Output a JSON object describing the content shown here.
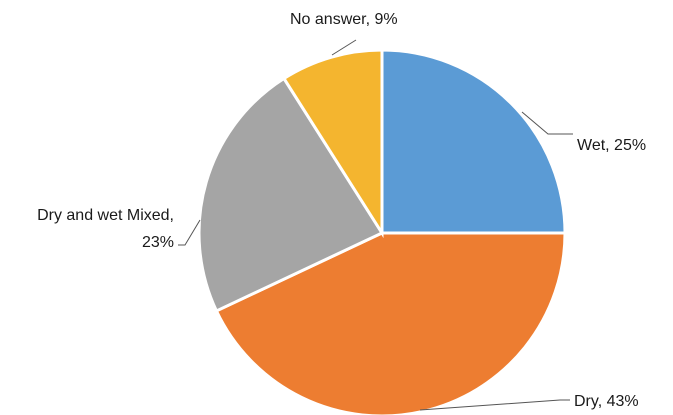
{
  "chart_data": {
    "type": "pie",
    "start_angle_deg": 0,
    "direction": "clockwise",
    "slices": [
      {
        "label": "Wet",
        "value": 25,
        "label_text": "Wet, 25%",
        "color": "#5b9bd5"
      },
      {
        "label": "Dry",
        "value": 43,
        "label_text": "Dry, 43%",
        "color": "#ed7d31"
      },
      {
        "label": "Dry and wet Mixed",
        "value": 23,
        "label_lines": [
          "Dry and wet Mixed,",
          "23%"
        ],
        "color": "#a5a5a5"
      },
      {
        "label": "No answer",
        "value": 9,
        "label_text": "No answer, 9%",
        "color": "#f4b52f"
      }
    ],
    "legend": "none",
    "data_labels": "outside with leader lines"
  }
}
